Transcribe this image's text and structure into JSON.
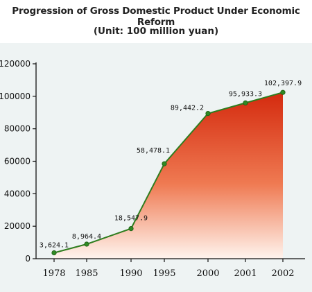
{
  "title": "Progression of Gross Domestic Product Under Economic Reform",
  "subtitle": "(Unit: 100 million yuan)",
  "colors": {
    "line": "#2e7d1e",
    "point": "#2f8a24",
    "area_top": "#d42a0e",
    "area_bottom": "#fff4ee",
    "panel": "#eef3f3"
  },
  "chart_data": {
    "type": "area",
    "title": "Progression of Gross Domestic Product Under Economic Reform",
    "subtitle": "(Unit: 100 million yuan)",
    "categories": [
      "1978",
      "1985",
      "1990",
      "1995",
      "2000",
      "2001",
      "2002"
    ],
    "values": [
      3624.1,
      8964.4,
      18547.9,
      58478.1,
      89442.2,
      95933.3,
      102397.9
    ],
    "data_labels": [
      "3,624.1",
      "8,964.4",
      "18,547.9",
      "58,478.1",
      "89,442.2",
      "95,933.3",
      "102,397.9"
    ],
    "ylim": [
      0,
      120000
    ],
    "yticks": [
      0,
      20000,
      40000,
      60000,
      80000,
      100000,
      120000
    ],
    "ytick_labels": [
      "0",
      "20000",
      "40000",
      "60000",
      "80000",
      "100000",
      "120000"
    ],
    "grid": false,
    "legend": "none"
  }
}
